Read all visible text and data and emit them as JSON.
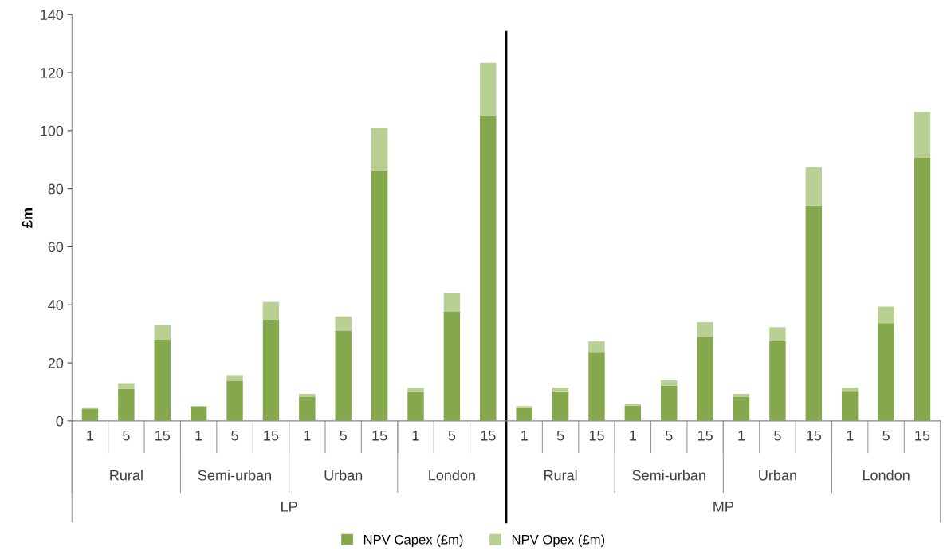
{
  "chart_data": {
    "type": "bar",
    "stacked": true,
    "ylabel": "£m",
    "categories": [
      "1",
      "5",
      "15",
      "1",
      "5",
      "15",
      "1",
      "5",
      "15",
      "1",
      "5",
      "15",
      "1",
      "5",
      "15",
      "1",
      "5",
      "15",
      "1",
      "5",
      "15",
      "1",
      "5",
      "15"
    ],
    "series": [
      {
        "name": "NPV Capex (£m)",
        "color": "#86a84c",
        "values": [
          4.1,
          11,
          28,
          4.7,
          13.7,
          35,
          8.2,
          31,
          86,
          10,
          37.6,
          105,
          4.4,
          10.2,
          23.5,
          5.2,
          12.1,
          29,
          8.2,
          27.6,
          74.2,
          10.3,
          33.7,
          90.6
        ]
      },
      {
        "name": "NPV Opex (£m)",
        "color": "#b8d094",
        "values": [
          0.3,
          2,
          5,
          0.5,
          2.1,
          6,
          1.1,
          5,
          15,
          1.4,
          6.4,
          18.4,
          0.7,
          1.3,
          3.9,
          0.6,
          1.9,
          5,
          1.1,
          4.7,
          13.2,
          1.2,
          5.7,
          15.8
        ]
      }
    ],
    "annotations": [
      "Rural",
      "Semi-urban",
      "Urban",
      "London",
      "Rural",
      "Semi-urban",
      "Urban",
      "London",
      "LP",
      "MP"
    ],
    "ylim": [
      0,
      140
    ],
    "yticks": [
      0,
      20,
      40,
      60,
      80,
      100,
      120,
      140
    ],
    "grid": false,
    "legend": "bottom"
  }
}
